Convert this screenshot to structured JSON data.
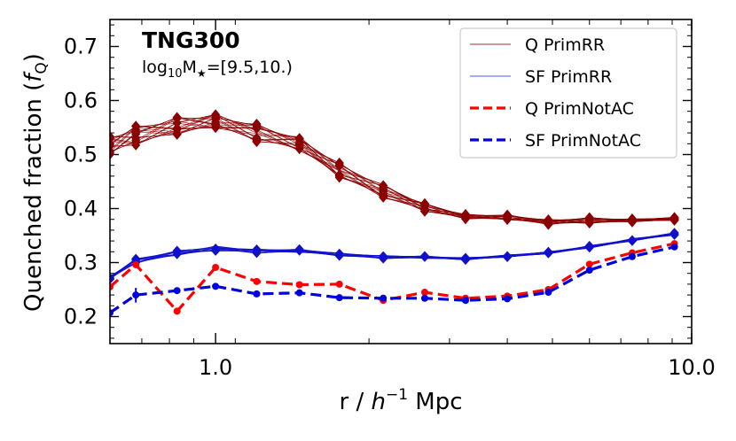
{
  "chart_data": {
    "type": "line",
    "title": "TNG300",
    "subtitle_parts": {
      "prefix": "log",
      "sub": "10",
      "mid": "M",
      "star": "★",
      "range": "=[9.5,10.)"
    },
    "xlabel": {
      "pre": "r / ",
      "h": "h",
      "sup": "−1",
      "post": " Mpc"
    },
    "ylabel": {
      "pre": "Quenched fraction (",
      "f": "f",
      "sub": "Q",
      "post": ")"
    },
    "xscale": "log",
    "xlim": [
      0.6,
      10.0
    ],
    "ylim": [
      0.15,
      0.75
    ],
    "xticks": [
      {
        "v": 1.0,
        "label": "1.0"
      },
      {
        "v": 10.0,
        "label": "10.0"
      }
    ],
    "yticks": [
      {
        "v": 0.2,
        "label": "0.2"
      },
      {
        "v": 0.3,
        "label": "0.3"
      },
      {
        "v": 0.4,
        "label": "0.4"
      },
      {
        "v": 0.5,
        "label": "0.5"
      },
      {
        "v": 0.6,
        "label": "0.6"
      },
      {
        "v": 0.7,
        "label": "0.7"
      }
    ],
    "legend": {
      "position": "top-right",
      "entries": [
        {
          "label": "Q PrimRR",
          "color": "#b55a5a",
          "style": "thin"
        },
        {
          "label": "SF PrimRR",
          "color": "#6a7fe8",
          "style": "thin"
        },
        {
          "label": "Q PrimNotAC",
          "color": "#ff0000",
          "style": "dashed"
        },
        {
          "label": "SF PrimNotAC",
          "color": "#0000dd",
          "style": "dashed"
        }
      ]
    },
    "x": [
      0.6,
      0.68,
      0.83,
      1.0,
      1.22,
      1.5,
      1.82,
      2.25,
      2.75,
      3.35,
      4.1,
      5.0,
      6.1,
      7.5,
      9.2
    ],
    "series": [
      {
        "name": "Q PrimRR (mean of realisations)",
        "color": "#8b0000",
        "values": [
          0.517,
          0.535,
          0.553,
          0.562,
          0.54,
          0.52,
          0.471,
          0.432,
          0.402,
          0.385,
          0.384,
          0.375,
          0.378,
          0.378,
          0.381
        ],
        "spread": [
          0.022,
          0.024,
          0.022,
          0.018,
          0.022,
          0.017,
          0.018,
          0.017,
          0.01,
          0.006,
          0.006,
          0.006,
          0.007,
          0.004,
          0.004
        ]
      },
      {
        "name": "SF PrimRR (mean of realisations)",
        "color": "#1010cc",
        "values": [
          0.272,
          0.303,
          0.318,
          0.326,
          0.321,
          0.322,
          0.315,
          0.31,
          0.31,
          0.307,
          0.312,
          0.318,
          0.329,
          0.342,
          0.353
        ],
        "spread": [
          0.004,
          0.006,
          0.006,
          0.006,
          0.005,
          0.004,
          0.004,
          0.004,
          0.003,
          0.003,
          0.003,
          0.003,
          0.003,
          0.003,
          0.003
        ]
      },
      {
        "name": "Q PrimNotAC",
        "color": "#ff0000",
        "values": [
          0.255,
          0.296,
          0.21,
          0.291,
          0.265,
          0.259,
          0.26,
          0.23,
          0.245,
          0.234,
          0.238,
          0.25,
          0.297,
          0.318,
          0.335
        ]
      },
      {
        "name": "SF PrimNotAC",
        "color": "#0000dd",
        "values": [
          0.207,
          0.24,
          0.248,
          0.256,
          0.242,
          0.244,
          0.235,
          0.234,
          0.234,
          0.23,
          0.233,
          0.245,
          0.286,
          0.311,
          0.329
        ]
      }
    ]
  }
}
